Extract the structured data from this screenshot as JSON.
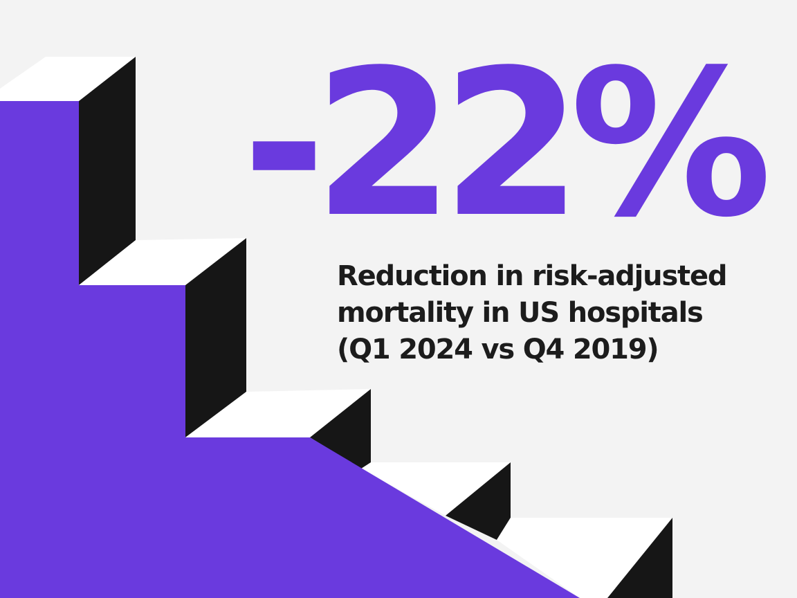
{
  "stat": {
    "value": "-22%",
    "caption_lines": [
      "Reduction in risk-adjusted",
      "mortality in US hospitals",
      "(Q1 2024 vs Q4 2019)"
    ]
  },
  "colors": {
    "background": "#f3f3f3",
    "accent": "#6a3ade",
    "riser": "#161616",
    "tread": "#ffffff",
    "text": "#1c1c1c"
  }
}
